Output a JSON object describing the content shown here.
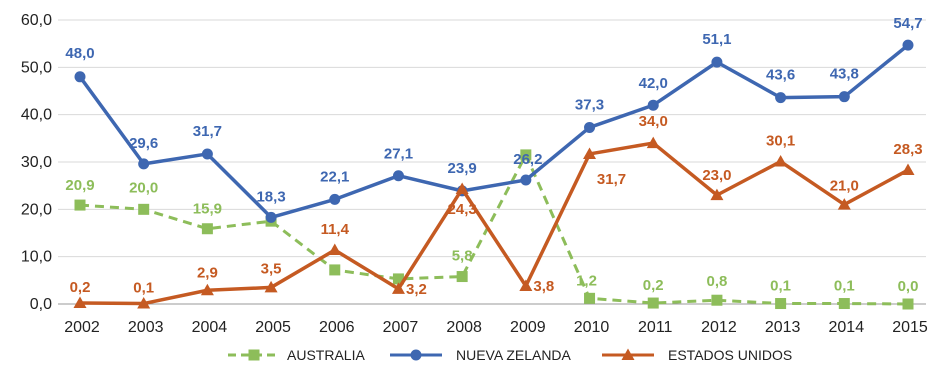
{
  "chart_data": {
    "type": "line",
    "title": "",
    "xlabel": "",
    "ylabel": "",
    "ylim": [
      0,
      60
    ],
    "yticks": [
      "0,0",
      "10,0",
      "20,0",
      "30,0",
      "40,0",
      "50,0",
      "60,0"
    ],
    "grid": true,
    "legend_position": "bottom",
    "categories": [
      "2002",
      "2003",
      "2004",
      "2005",
      "2006",
      "2007",
      "2008",
      "2009",
      "2010",
      "2011",
      "2012",
      "2013",
      "2014",
      "2015"
    ],
    "series": [
      {
        "name": "AUSTRALIA",
        "color": "#8dbd5a",
        "style": "dashed",
        "marker": "square",
        "values": [
          20.9,
          20.0,
          15.9,
          17.5,
          7.2,
          5.3,
          5.8,
          31.5,
          1.2,
          0.2,
          0.8,
          0.1,
          0.1,
          0.0
        ],
        "labels": [
          "20,9",
          "20,0",
          "15,9",
          "",
          "",
          "",
          "5,8",
          "",
          "1,2",
          "0,2",
          "0,8",
          "0,1",
          "0,1",
          "0,0"
        ]
      },
      {
        "name": "NUEVA ZELANDA",
        "color": "#3e67b1",
        "style": "solid",
        "marker": "circle",
        "values": [
          48.0,
          29.6,
          31.7,
          18.3,
          22.1,
          27.1,
          23.9,
          26.2,
          37.3,
          42.0,
          51.1,
          43.6,
          43.8,
          54.7
        ],
        "labels": [
          "48,0",
          "29,6",
          "31,7",
          "18,3",
          "22,1",
          "27,1",
          "23,9",
          "26,2",
          "37,3",
          "42,0",
          "51,1",
          "43,6",
          "43,8",
          "54,7"
        ]
      },
      {
        "name": "ESTADOS UNIDOS",
        "color": "#c55a22",
        "style": "solid",
        "marker": "triangle",
        "values": [
          0.2,
          0.1,
          2.9,
          3.5,
          11.4,
          3.2,
          24.3,
          3.8,
          31.7,
          34.0,
          23.0,
          30.1,
          21.0,
          28.3
        ],
        "labels": [
          "0,2",
          "0,1",
          "2,9",
          "3,5",
          "11,4",
          "3,2",
          "24,3",
          "3,8",
          "31,7",
          "34,0",
          "23,0",
          "30,1",
          "21,0",
          "28,3"
        ]
      }
    ]
  }
}
